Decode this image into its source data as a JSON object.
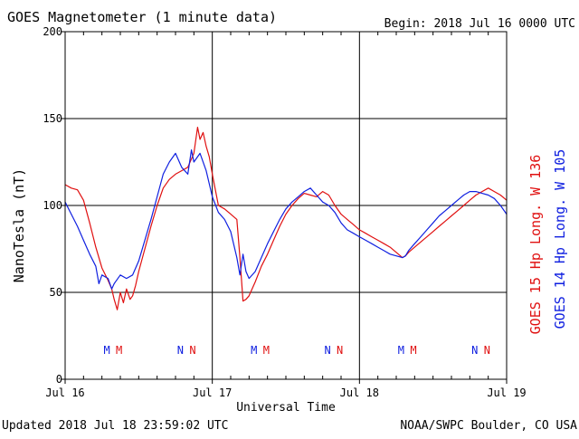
{
  "title": "GOES Magnetometer (1 minute data)",
  "begin_label": "Begin:  2018 Jul 16 0000 UTC",
  "footer_left": "Updated 2018 Jul 18 23:59:02 UTC",
  "footer_right": "NOAA/SWPC Boulder, CO USA",
  "colors": {
    "goes15": "#e01010",
    "goes14": "#1020e0",
    "axis": "#000000"
  },
  "chart_data": {
    "type": "line",
    "title": "GOES Magnetometer (1 minute data)",
    "xlabel": "Universal Time",
    "ylabel": "NanoTesla (nT)",
    "ylim": [
      0,
      200
    ],
    "y_ticks": [
      0,
      50,
      100,
      150,
      200
    ],
    "xlim": [
      0,
      72
    ],
    "x_unit": "hours since 2018 Jul 16 0000 UTC",
    "x_ticks": [
      {
        "x": 0,
        "label": "Jul 16"
      },
      {
        "x": 24,
        "label": "Jul 17"
      },
      {
        "x": 48,
        "label": "Jul 18"
      },
      {
        "x": 72,
        "label": "Jul 19"
      }
    ],
    "grid": true,
    "legend_placement": "right, vertical",
    "series": [
      {
        "name": "GOES 15 Hp  Long. W 136",
        "color": "#e01010",
        "x": [
          0,
          1,
          2,
          3,
          4,
          5,
          6,
          7,
          7.6,
          8,
          8.5,
          9,
          9.5,
          10,
          10.6,
          11,
          11.5,
          12,
          13,
          14,
          15,
          16,
          17,
          18,
          19,
          20,
          21,
          21.6,
          22,
          22.5,
          23,
          23.5,
          24,
          25,
          26,
          27,
          28,
          28.5,
          29,
          29.5,
          30,
          31,
          32,
          33,
          34,
          35,
          36,
          37,
          38,
          39,
          40,
          41,
          42,
          43,
          44,
          45,
          46,
          47,
          48,
          49,
          50,
          51,
          52,
          53,
          54,
          55,
          55.5,
          56,
          57,
          58,
          59,
          60,
          61,
          62,
          63,
          64,
          65,
          66,
          67,
          68,
          69,
          70,
          71,
          72
        ],
        "y": [
          112,
          110,
          109,
          103,
          90,
          76,
          64,
          57,
          52,
          46,
          40,
          50,
          44,
          52,
          46,
          48,
          54,
          62,
          75,
          88,
          100,
          110,
          115,
          118,
          120,
          122,
          130,
          145,
          138,
          142,
          134,
          128,
          118,
          100,
          98,
          95,
          92,
          70,
          45,
          46,
          48,
          56,
          65,
          72,
          80,
          88,
          95,
          100,
          104,
          107,
          106,
          105,
          108,
          106,
          100,
          95,
          92,
          89,
          86,
          84,
          82,
          80,
          78,
          76,
          73,
          70,
          71,
          73,
          76,
          79,
          82,
          85,
          88,
          91,
          94,
          97,
          100,
          103,
          106,
          108,
          110,
          108,
          106,
          103
        ]
      },
      {
        "name": "GOES 14 Hp  Long. W 105",
        "color": "#1020e0",
        "x": [
          0,
          1,
          2,
          3,
          4,
          5,
          5.5,
          6,
          7,
          7.6,
          8,
          9,
          10,
          11,
          12,
          13,
          14,
          15,
          16,
          17,
          18,
          19,
          20,
          20.6,
          21,
          22,
          23,
          24,
          25,
          26,
          27,
          28,
          28.5,
          29,
          29.5,
          30,
          31,
          32,
          33,
          34,
          35,
          36,
          37,
          38,
          39,
          40,
          41,
          42,
          43,
          44,
          45,
          46,
          47,
          48,
          49,
          50,
          51,
          52,
          53,
          54,
          55,
          55.5,
          56,
          57,
          58,
          59,
          60,
          61,
          62,
          63,
          64,
          65,
          66,
          67,
          68,
          69,
          70,
          71,
          72
        ],
        "y": [
          102,
          95,
          88,
          80,
          72,
          65,
          55,
          60,
          58,
          52,
          55,
          60,
          58,
          60,
          68,
          80,
          92,
          105,
          118,
          125,
          130,
          122,
          118,
          132,
          125,
          130,
          120,
          105,
          96,
          92,
          85,
          70,
          60,
          72,
          62,
          58,
          62,
          70,
          78,
          85,
          92,
          98,
          102,
          105,
          108,
          110,
          106,
          102,
          100,
          96,
          90,
          86,
          84,
          82,
          80,
          78,
          76,
          74,
          72,
          71,
          70,
          71,
          74,
          78,
          82,
          86,
          90,
          94,
          97,
          100,
          103,
          106,
          108,
          108,
          107,
          106,
          104,
          100,
          95
        ]
      }
    ],
    "markers": [
      {
        "x": 6.8,
        "label": "M",
        "color": "#1020e0"
      },
      {
        "x": 8.8,
        "label": "M",
        "color": "#e01010"
      },
      {
        "x": 18.8,
        "label": "N",
        "color": "#1020e0"
      },
      {
        "x": 20.8,
        "label": "N",
        "color": "#e01010"
      },
      {
        "x": 30.8,
        "label": "M",
        "color": "#1020e0"
      },
      {
        "x": 32.8,
        "label": "M",
        "color": "#e01010"
      },
      {
        "x": 42.8,
        "label": "N",
        "color": "#1020e0"
      },
      {
        "x": 44.8,
        "label": "N",
        "color": "#e01010"
      },
      {
        "x": 54.8,
        "label": "M",
        "color": "#1020e0"
      },
      {
        "x": 56.8,
        "label": "M",
        "color": "#e01010"
      },
      {
        "x": 66.8,
        "label": "N",
        "color": "#1020e0"
      },
      {
        "x": 68.8,
        "label": "N",
        "color": "#e01010"
      }
    ]
  }
}
